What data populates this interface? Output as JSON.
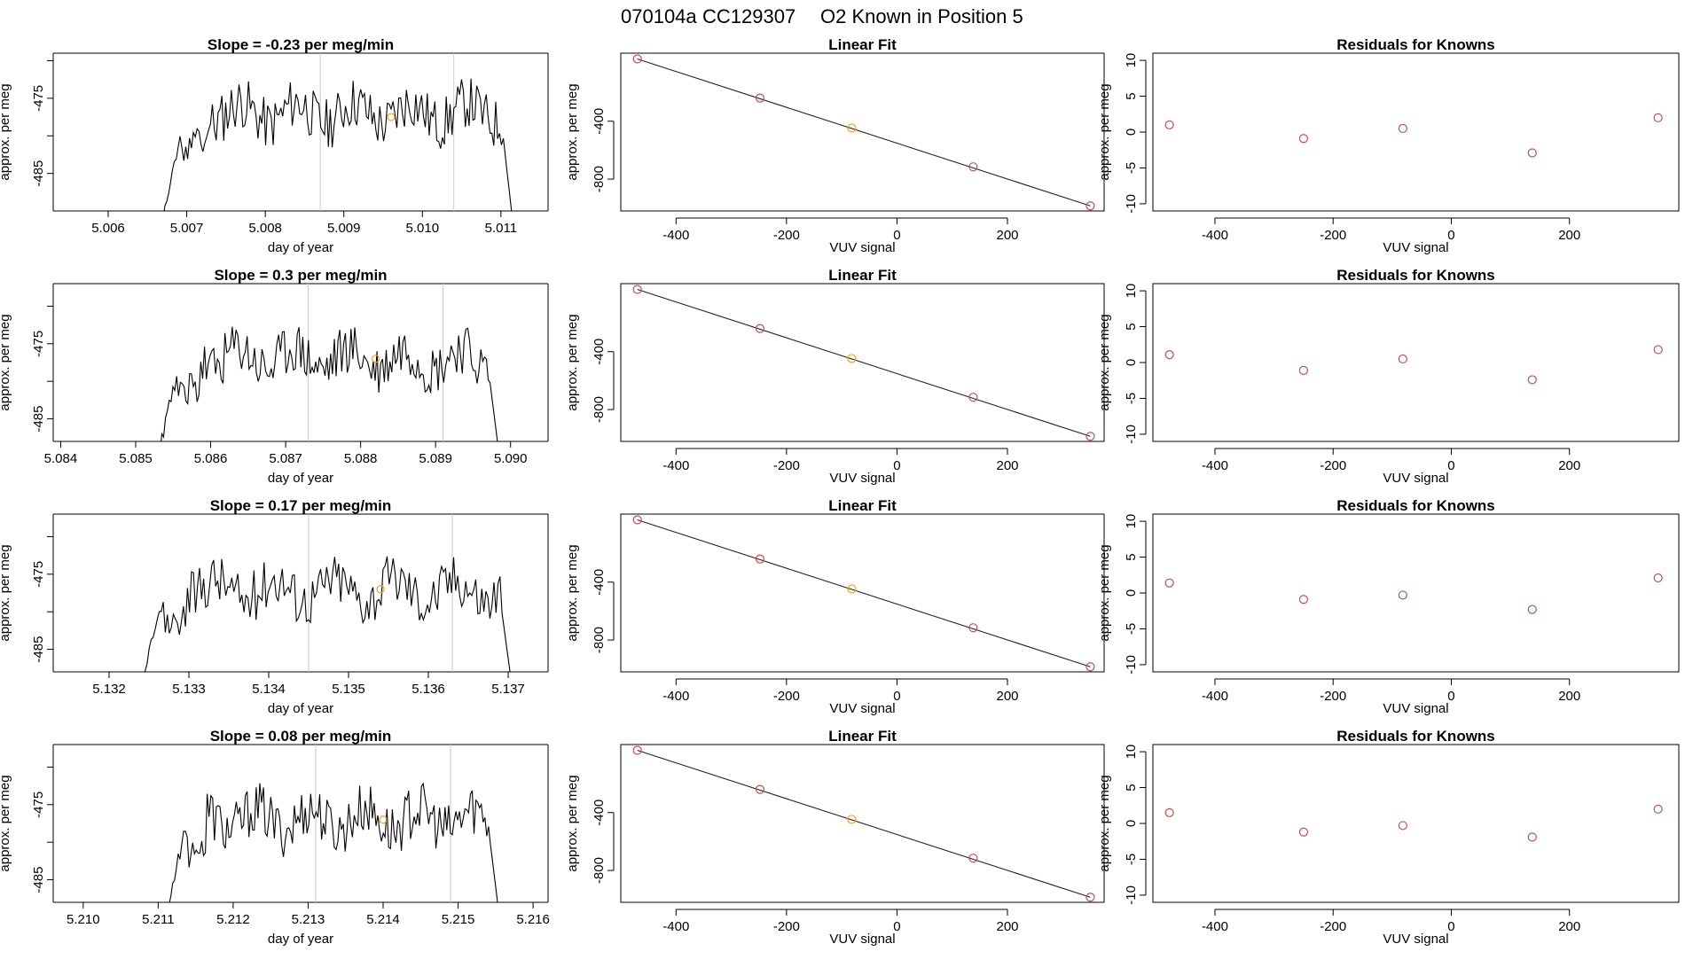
{
  "figure_title": {
    "run": "070104a",
    "tank": "CC129307",
    "label": "O2 Known in Position  5"
  },
  "chart_data": [
    {
      "type": "line",
      "row": 1,
      "title": "Slope =  -0.23  per meg/min",
      "xlabel": "day of year",
      "ylabel": "approx. per meg",
      "xlim": [
        5.0053,
        5.0116
      ],
      "ylim": [
        -490,
        -469
      ],
      "xticks": [
        "5.006",
        "5.007",
        "5.008",
        "5.009",
        "5.010",
        "5.011"
      ],
      "yticks": [
        "-475",
        "-485"
      ],
      "trace_range": [
        5.0066,
        5.0112
      ],
      "trace_seed": 11,
      "vlines": [
        5.0087,
        5.0104
      ],
      "highlight": {
        "x": 5.0096,
        "y": -477.5
      }
    },
    {
      "type": "scatter",
      "row": 1,
      "title": "Linear Fit",
      "xlabel": "VUV signal",
      "ylabel": "approx. per meg",
      "xlim": [
        -500,
        375
      ],
      "ylim": [
        -1020,
        70
      ],
      "xticks": [
        "-400",
        "-200",
        "0",
        "200"
      ],
      "yticks": [
        "-400",
        "-800"
      ],
      "points": [
        {
          "x": -470,
          "y": 30
        },
        {
          "x": -248,
          "y": -240
        },
        {
          "x": -82,
          "y": -447
        },
        {
          "x": 138,
          "y": -715
        },
        {
          "x": 350,
          "y": -985
        }
      ],
      "highlight_index": 2,
      "fit_line": {
        "x": [
          -470,
          350
        ],
        "y": [
          30,
          -985
        ]
      }
    },
    {
      "type": "scatter",
      "row": 1,
      "title": "Residuals for Knowns",
      "xlabel": "VUV signal",
      "ylabel": "approx. per meg",
      "xlim": [
        -505,
        385
      ],
      "ylim": [
        -11,
        11
      ],
      "xticks": [
        "-400",
        "-200",
        "0",
        "200"
      ],
      "yticks": [
        "10",
        "5",
        "0",
        "-5",
        "-10"
      ],
      "points": [
        {
          "x": -477,
          "y": 1.0
        },
        {
          "x": -250,
          "y": -0.9
        },
        {
          "x": -82,
          "y": 0.5
        },
        {
          "x": 137,
          "y": -2.9
        },
        {
          "x": 350,
          "y": 2.0
        }
      ]
    },
    {
      "type": "line",
      "row": 2,
      "title": "Slope =  0.3  per meg/min",
      "xlabel": "day of year",
      "ylabel": "approx. per meg",
      "xlim": [
        5.0839,
        5.0905
      ],
      "ylim": [
        -488,
        -467
      ],
      "xticks": [
        "5.084",
        "5.085",
        "5.086",
        "5.087",
        "5.088",
        "5.089",
        "5.090"
      ],
      "yticks": [
        "-475",
        "-485"
      ],
      "trace_range": [
        5.0852,
        5.0899
      ],
      "trace_seed": 23,
      "vlines": [
        5.0873,
        5.0891
      ],
      "highlight": {
        "x": 5.0882,
        "y": -477.0
      }
    },
    {
      "type": "scatter",
      "row": 2,
      "title": "Linear Fit",
      "xlabel": "VUV signal",
      "ylabel": "approx. per meg",
      "xlim": [
        -500,
        375
      ],
      "ylim": [
        -1020,
        70
      ],
      "xticks": [
        "-400",
        "-200",
        "0",
        "200"
      ],
      "yticks": [
        "-400",
        "-800"
      ],
      "points": [
        {
          "x": -470,
          "y": 30
        },
        {
          "x": -248,
          "y": -240
        },
        {
          "x": -82,
          "y": -447
        },
        {
          "x": 138,
          "y": -715
        },
        {
          "x": 350,
          "y": -985
        }
      ],
      "highlight_index": 2,
      "fit_line": {
        "x": [
          -470,
          350
        ],
        "y": [
          30,
          -985
        ]
      }
    },
    {
      "type": "scatter",
      "row": 2,
      "title": "Residuals for Knowns",
      "xlabel": "VUV signal",
      "ylabel": "approx. per meg",
      "xlim": [
        -505,
        385
      ],
      "ylim": [
        -11,
        11
      ],
      "xticks": [
        "-400",
        "-200",
        "0",
        "200"
      ],
      "yticks": [
        "10",
        "5",
        "0",
        "-5",
        "-10"
      ],
      "points": [
        {
          "x": -477,
          "y": 1.1
        },
        {
          "x": -250,
          "y": -1.1
        },
        {
          "x": -82,
          "y": 0.5
        },
        {
          "x": 137,
          "y": -2.4
        },
        {
          "x": 350,
          "y": 1.8
        }
      ]
    },
    {
      "type": "line",
      "row": 3,
      "title": "Slope =  0.17  per meg/min",
      "xlabel": "day of year",
      "ylabel": "approx. per meg",
      "xlim": [
        5.1313,
        5.1375
      ],
      "ylim": [
        -488,
        -467
      ],
      "xticks": [
        "5.132",
        "5.133",
        "5.134",
        "5.135",
        "5.136",
        "5.137"
      ],
      "yticks": [
        "-475",
        "-485"
      ],
      "trace_range": [
        5.1323,
        5.1371
      ],
      "trace_seed": 37,
      "vlines": [
        5.1345,
        5.1363
      ],
      "highlight": {
        "x": 5.1354,
        "y": -477.0
      }
    },
    {
      "type": "scatter",
      "row": 3,
      "title": "Linear Fit",
      "xlabel": "VUV signal",
      "ylabel": "approx. per meg",
      "xlim": [
        -500,
        375
      ],
      "ylim": [
        -1020,
        70
      ],
      "xticks": [
        "-400",
        "-200",
        "0",
        "200"
      ],
      "yticks": [
        "-400",
        "-800"
      ],
      "points": [
        {
          "x": -470,
          "y": 30
        },
        {
          "x": -248,
          "y": -240
        },
        {
          "x": -82,
          "y": -447
        },
        {
          "x": 138,
          "y": -715
        },
        {
          "x": 350,
          "y": -985
        }
      ],
      "highlight_index": 2,
      "fit_line": {
        "x": [
          -470,
          350
        ],
        "y": [
          30,
          -985
        ]
      }
    },
    {
      "type": "scatter",
      "row": 3,
      "title": "Residuals for Knowns",
      "xlabel": "VUV signal",
      "ylabel": "approx. per meg",
      "xlim": [
        -505,
        385
      ],
      "ylim": [
        -11,
        11
      ],
      "xticks": [
        "-400",
        "-200",
        "0",
        "200"
      ],
      "yticks": [
        "10",
        "5",
        "0",
        "-5",
        "-10"
      ],
      "points": [
        {
          "x": -477,
          "y": 1.4
        },
        {
          "x": -250,
          "y": -0.9
        },
        {
          "x": -82,
          "y": -0.3
        },
        {
          "x": 137,
          "y": -2.3
        },
        {
          "x": 350,
          "y": 2.1
        }
      ]
    },
    {
      "type": "line",
      "row": 4,
      "title": "Slope =  0.08  per meg/min",
      "xlabel": "day of year",
      "ylabel": "approx. per meg",
      "xlim": [
        5.2096,
        5.2162
      ],
      "ylim": [
        -488,
        -467
      ],
      "xticks": [
        "5.210",
        "5.211",
        "5.212",
        "5.213",
        "5.214",
        "5.215",
        "5.216"
      ],
      "yticks": [
        "-475",
        "-485"
      ],
      "trace_range": [
        5.211,
        5.2156
      ],
      "trace_seed": 53,
      "vlines": [
        5.2131,
        5.2149
      ],
      "highlight": {
        "x": 5.214,
        "y": -477.0
      }
    },
    {
      "type": "scatter",
      "row": 4,
      "title": "Linear Fit",
      "xlabel": "VUV signal",
      "ylabel": "approx. per meg",
      "xlim": [
        -500,
        375
      ],
      "ylim": [
        -1020,
        70
      ],
      "xticks": [
        "-400",
        "-200",
        "0",
        "200"
      ],
      "yticks": [
        "-400",
        "-800"
      ],
      "points": [
        {
          "x": -470,
          "y": 30
        },
        {
          "x": -248,
          "y": -240
        },
        {
          "x": -82,
          "y": -447
        },
        {
          "x": 138,
          "y": -715
        },
        {
          "x": 350,
          "y": -985
        }
      ],
      "highlight_index": 2,
      "fit_line": {
        "x": [
          -470,
          350
        ],
        "y": [
          30,
          -985
        ]
      }
    },
    {
      "type": "scatter",
      "row": 4,
      "title": "Residuals for Knowns",
      "xlabel": "VUV signal",
      "ylabel": "approx. per meg",
      "xlim": [
        -505,
        385
      ],
      "ylim": [
        -11,
        11
      ],
      "xticks": [
        "-400",
        "-200",
        "0",
        "200"
      ],
      "yticks": [
        "10",
        "5",
        "0",
        "-5",
        "-10"
      ],
      "points": [
        {
          "x": -477,
          "y": 1.5
        },
        {
          "x": -250,
          "y": -1.2
        },
        {
          "x": -82,
          "y": -0.3
        },
        {
          "x": 137,
          "y": -1.9
        },
        {
          "x": 350,
          "y": 2.0
        }
      ]
    }
  ],
  "colors": {
    "line": "#000000",
    "vline": "#c8c8c8",
    "point": "#c44e52",
    "highlight": "#f0a030",
    "fit": "#222222"
  }
}
